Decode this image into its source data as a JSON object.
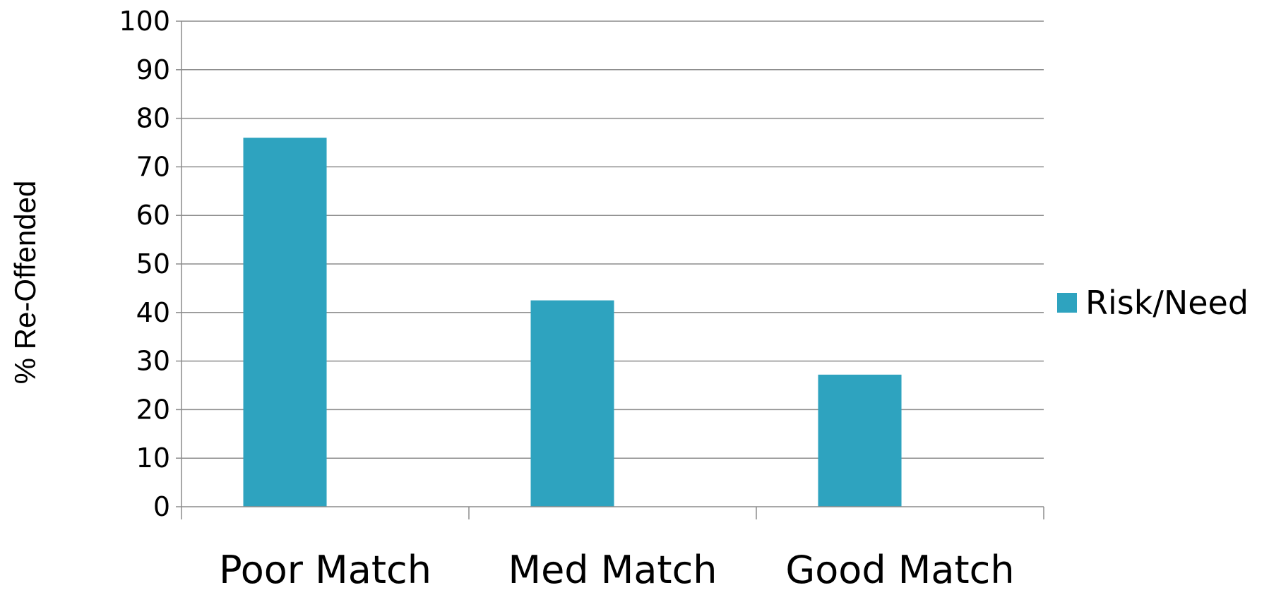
{
  "chart_data": {
    "type": "bar",
    "title": "",
    "xlabel": "",
    "ylabel": "% Re-Offended",
    "categories": [
      "Poor Match",
      "Med Match",
      "Good Match"
    ],
    "series": [
      {
        "name": "Risk/Need",
        "values": [
          76,
          42.5,
          27.2
        ],
        "color": "#2EA3BF"
      }
    ],
    "ylim": [
      0,
      100
    ],
    "yticks": [
      "0",
      "10",
      "20",
      "30",
      "40",
      "50",
      "60",
      "70",
      "80",
      "90",
      "100"
    ],
    "grid": true,
    "legend": "right"
  }
}
